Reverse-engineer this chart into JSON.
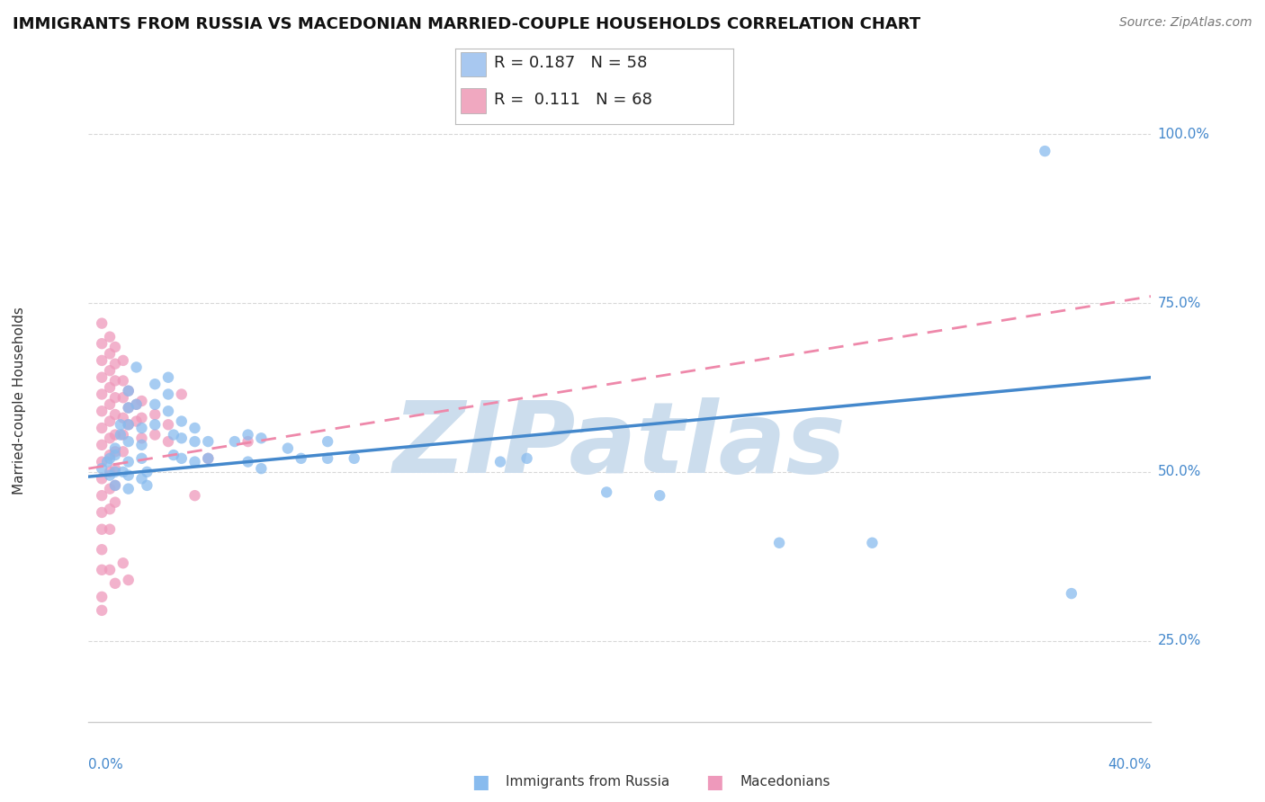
{
  "title": "IMMIGRANTS FROM RUSSIA VS MACEDONIAN MARRIED-COUPLE HOUSEHOLDS CORRELATION CHART",
  "source": "Source: ZipAtlas.com",
  "ylabel": "Married-couple Households",
  "ytick_vals": [
    0.25,
    0.5,
    0.75,
    1.0
  ],
  "ytick_labels": [
    "25.0%",
    "50.0%",
    "75.0%",
    "100.0%"
  ],
  "xlim": [
    0.0,
    0.4
  ],
  "ylim": [
    0.13,
    1.08
  ],
  "legend_series": [
    {
      "label": "Immigrants from Russia",
      "color": "#a8c8f0",
      "R": "0.187",
      "N": "58"
    },
    {
      "label": "Macedonians",
      "color": "#f0a8c0",
      "R": " 0.111",
      "N": "68"
    }
  ],
  "watermark": "ZIPatlas",
  "blue_scatter": [
    [
      0.005,
      0.505
    ],
    [
      0.007,
      0.515
    ],
    [
      0.008,
      0.495
    ],
    [
      0.008,
      0.52
    ],
    [
      0.01,
      0.5
    ],
    [
      0.01,
      0.525
    ],
    [
      0.01,
      0.535
    ],
    [
      0.01,
      0.48
    ],
    [
      0.012,
      0.555
    ],
    [
      0.012,
      0.57
    ],
    [
      0.013,
      0.5
    ],
    [
      0.015,
      0.62
    ],
    [
      0.015,
      0.595
    ],
    [
      0.015,
      0.57
    ],
    [
      0.015,
      0.545
    ],
    [
      0.015,
      0.515
    ],
    [
      0.015,
      0.495
    ],
    [
      0.015,
      0.475
    ],
    [
      0.018,
      0.655
    ],
    [
      0.018,
      0.6
    ],
    [
      0.02,
      0.565
    ],
    [
      0.02,
      0.54
    ],
    [
      0.02,
      0.52
    ],
    [
      0.02,
      0.49
    ],
    [
      0.022,
      0.5
    ],
    [
      0.022,
      0.48
    ],
    [
      0.025,
      0.63
    ],
    [
      0.025,
      0.6
    ],
    [
      0.025,
      0.57
    ],
    [
      0.03,
      0.64
    ],
    [
      0.03,
      0.615
    ],
    [
      0.03,
      0.59
    ],
    [
      0.032,
      0.555
    ],
    [
      0.032,
      0.525
    ],
    [
      0.035,
      0.575
    ],
    [
      0.035,
      0.55
    ],
    [
      0.035,
      0.52
    ],
    [
      0.04,
      0.565
    ],
    [
      0.04,
      0.545
    ],
    [
      0.04,
      0.515
    ],
    [
      0.045,
      0.545
    ],
    [
      0.045,
      0.52
    ],
    [
      0.055,
      0.545
    ],
    [
      0.06,
      0.555
    ],
    [
      0.06,
      0.515
    ],
    [
      0.065,
      0.55
    ],
    [
      0.065,
      0.505
    ],
    [
      0.075,
      0.535
    ],
    [
      0.08,
      0.52
    ],
    [
      0.09,
      0.545
    ],
    [
      0.09,
      0.52
    ],
    [
      0.1,
      0.52
    ],
    [
      0.155,
      0.515
    ],
    [
      0.165,
      0.52
    ],
    [
      0.195,
      0.47
    ],
    [
      0.215,
      0.465
    ],
    [
      0.26,
      0.395
    ],
    [
      0.295,
      0.395
    ],
    [
      0.36,
      0.975
    ],
    [
      0.37,
      0.32
    ]
  ],
  "pink_scatter": [
    [
      0.005,
      0.72
    ],
    [
      0.005,
      0.69
    ],
    [
      0.005,
      0.665
    ],
    [
      0.005,
      0.64
    ],
    [
      0.005,
      0.615
    ],
    [
      0.005,
      0.59
    ],
    [
      0.005,
      0.565
    ],
    [
      0.005,
      0.54
    ],
    [
      0.005,
      0.515
    ],
    [
      0.005,
      0.49
    ],
    [
      0.005,
      0.465
    ],
    [
      0.005,
      0.44
    ],
    [
      0.005,
      0.415
    ],
    [
      0.005,
      0.385
    ],
    [
      0.005,
      0.355
    ],
    [
      0.008,
      0.7
    ],
    [
      0.008,
      0.675
    ],
    [
      0.008,
      0.65
    ],
    [
      0.008,
      0.625
    ],
    [
      0.008,
      0.6
    ],
    [
      0.008,
      0.575
    ],
    [
      0.008,
      0.55
    ],
    [
      0.008,
      0.525
    ],
    [
      0.008,
      0.5
    ],
    [
      0.008,
      0.475
    ],
    [
      0.008,
      0.445
    ],
    [
      0.008,
      0.415
    ],
    [
      0.01,
      0.685
    ],
    [
      0.01,
      0.66
    ],
    [
      0.01,
      0.635
    ],
    [
      0.01,
      0.61
    ],
    [
      0.01,
      0.585
    ],
    [
      0.01,
      0.555
    ],
    [
      0.01,
      0.53
    ],
    [
      0.01,
      0.505
    ],
    [
      0.01,
      0.48
    ],
    [
      0.01,
      0.455
    ],
    [
      0.013,
      0.665
    ],
    [
      0.013,
      0.635
    ],
    [
      0.013,
      0.61
    ],
    [
      0.013,
      0.58
    ],
    [
      0.013,
      0.555
    ],
    [
      0.013,
      0.53
    ],
    [
      0.015,
      0.62
    ],
    [
      0.015,
      0.595
    ],
    [
      0.015,
      0.57
    ],
    [
      0.018,
      0.6
    ],
    [
      0.018,
      0.575
    ],
    [
      0.02,
      0.605
    ],
    [
      0.02,
      0.58
    ],
    [
      0.02,
      0.55
    ],
    [
      0.025,
      0.585
    ],
    [
      0.025,
      0.555
    ],
    [
      0.03,
      0.57
    ],
    [
      0.03,
      0.545
    ],
    [
      0.035,
      0.615
    ],
    [
      0.04,
      0.465
    ],
    [
      0.045,
      0.52
    ],
    [
      0.06,
      0.545
    ],
    [
      0.005,
      0.315
    ],
    [
      0.008,
      0.355
    ],
    [
      0.01,
      0.335
    ],
    [
      0.013,
      0.365
    ],
    [
      0.015,
      0.34
    ],
    [
      0.005,
      0.295
    ]
  ],
  "blue_line_x": [
    0.0,
    0.4
  ],
  "blue_line_y": [
    0.493,
    0.64
  ],
  "pink_line_x": [
    0.0,
    0.4
  ],
  "pink_line_y": [
    0.505,
    0.76
  ],
  "blue_line_color": "#4488cc",
  "pink_line_color": "#ee88aa",
  "scatter_blue_color": "#88bbee",
  "scatter_pink_color": "#ee99bb",
  "grid_color": "#d8d8d8",
  "background_color": "#ffffff",
  "watermark_color": "#ccdded",
  "watermark_fontsize": 80,
  "title_fontsize": 13,
  "tick_label_color": "#4488cc",
  "xlabel_color": "#4488cc"
}
